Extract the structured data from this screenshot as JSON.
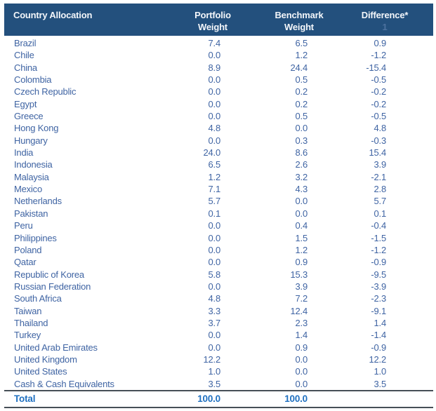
{
  "colors": {
    "header_bg": "#23507d",
    "header_text": "#f3f6fa",
    "header_footnote": "#4d729f",
    "body_text": "#3f64a3",
    "total_text": "#1f70c0",
    "rule": "#474f57",
    "page_bg": "#ffffff"
  },
  "table": {
    "header": {
      "country": "Country Allocation",
      "portfolio_line1": "Portfolio",
      "portfolio_line2": "Weight",
      "benchmark_line1": "Benchmark",
      "benchmark_line2": "Weight",
      "difference_line1": "Difference*",
      "difference_footnote": "1"
    },
    "rows": [
      {
        "name": "Brazil",
        "portfolio": "7.4",
        "benchmark": "6.5",
        "difference": "0.9"
      },
      {
        "name": "Chile",
        "portfolio": "0.0",
        "benchmark": "1.2",
        "difference": "-1.2"
      },
      {
        "name": "China",
        "portfolio": "8.9",
        "benchmark": "24.4",
        "difference": "-15.4"
      },
      {
        "name": "Colombia",
        "portfolio": "0.0",
        "benchmark": "0.5",
        "difference": "-0.5"
      },
      {
        "name": "Czech Republic",
        "portfolio": "0.0",
        "benchmark": "0.2",
        "difference": "-0.2"
      },
      {
        "name": "Egypt",
        "portfolio": "0.0",
        "benchmark": "0.2",
        "difference": "-0.2"
      },
      {
        "name": "Greece",
        "portfolio": "0.0",
        "benchmark": "0.5",
        "difference": "-0.5"
      },
      {
        "name": "Hong Kong",
        "portfolio": "4.8",
        "benchmark": "0.0",
        "difference": "4.8"
      },
      {
        "name": "Hungary",
        "portfolio": "0.0",
        "benchmark": "0.3",
        "difference": "-0.3"
      },
      {
        "name": "India",
        "portfolio": "24.0",
        "benchmark": "8.6",
        "difference": "15.4"
      },
      {
        "name": "Indonesia",
        "portfolio": "6.5",
        "benchmark": "2.6",
        "difference": "3.9"
      },
      {
        "name": "Malaysia",
        "portfolio": "1.2",
        "benchmark": "3.2",
        "difference": "-2.1"
      },
      {
        "name": "Mexico",
        "portfolio": "7.1",
        "benchmark": "4.3",
        "difference": "2.8"
      },
      {
        "name": "Netherlands",
        "portfolio": "5.7",
        "benchmark": "0.0",
        "difference": "5.7"
      },
      {
        "name": "Pakistan",
        "portfolio": "0.1",
        "benchmark": "0.0",
        "difference": "0.1"
      },
      {
        "name": "Peru",
        "portfolio": "0.0",
        "benchmark": "0.4",
        "difference": "-0.4"
      },
      {
        "name": "Philippines",
        "portfolio": "0.0",
        "benchmark": "1.5",
        "difference": "-1.5"
      },
      {
        "name": "Poland",
        "portfolio": "0.0",
        "benchmark": "1.2",
        "difference": "-1.2"
      },
      {
        "name": "Qatar",
        "portfolio": "0.0",
        "benchmark": "0.9",
        "difference": "-0.9"
      },
      {
        "name": "Republic of Korea",
        "portfolio": "5.8",
        "benchmark": "15.3",
        "difference": "-9.5"
      },
      {
        "name": "Russian Federation",
        "portfolio": "0.0",
        "benchmark": "3.9",
        "difference": "-3.9"
      },
      {
        "name": "South Africa",
        "portfolio": "4.8",
        "benchmark": "7.2",
        "difference": "-2.3"
      },
      {
        "name": "Taiwan",
        "portfolio": "3.3",
        "benchmark": "12.4",
        "difference": "-9.1"
      },
      {
        "name": "Thailand",
        "portfolio": "3.7",
        "benchmark": "2.3",
        "difference": "1.4"
      },
      {
        "name": "Turkey",
        "portfolio": "0.0",
        "benchmark": "1.4",
        "difference": "-1.4"
      },
      {
        "name": "United Arab Emirates",
        "portfolio": "0.0",
        "benchmark": "0.9",
        "difference": "-0.9"
      },
      {
        "name": "United Kingdom",
        "portfolio": "12.2",
        "benchmark": "0.0",
        "difference": "12.2"
      },
      {
        "name": "United States",
        "portfolio": "1.0",
        "benchmark": "0.0",
        "difference": "1.0"
      },
      {
        "name": "Cash & Cash Equivalents",
        "portfolio": "3.5",
        "benchmark": "0.0",
        "difference": "3.5"
      }
    ],
    "total": {
      "label": "Total",
      "portfolio": "100.0",
      "benchmark": "100.0",
      "difference": ""
    }
  }
}
